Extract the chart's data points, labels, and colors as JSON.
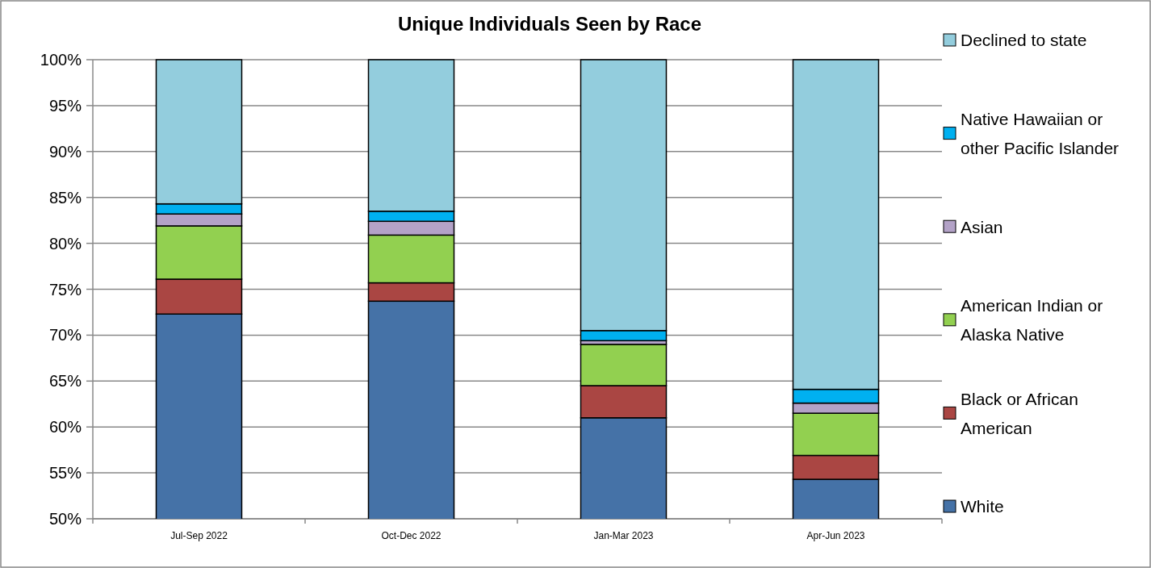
{
  "chart_data": {
    "type": "bar",
    "title": "Unique Individuals Seen by Race",
    "stacked": true,
    "categories": [
      "Jul-Sep 2022",
      "Oct-Dec 2022",
      "Jan-Mar 2023",
      "Apr-Jun 2023"
    ],
    "series": [
      {
        "name": "White",
        "color": "#4572a7",
        "values": [
          72.3,
          73.7,
          61.0,
          54.3
        ]
      },
      {
        "name": "Black or African American",
        "color": "#aa4643",
        "base": [
          72.3,
          73.7,
          61.0,
          54.3
        ],
        "values": [
          3.8,
          2.0,
          3.5,
          2.6
        ]
      },
      {
        "name": "American Indian or Alaska Native",
        "color": "#92d050",
        "base": [
          76.1,
          75.7,
          64.5,
          56.9
        ],
        "values": [
          5.8,
          5.2,
          4.5,
          4.6
        ]
      },
      {
        "name": "Asian",
        "color": "#b3a2c7",
        "base": [
          81.9,
          80.9,
          69.0,
          61.5
        ],
        "values": [
          1.3,
          1.5,
          0.4,
          1.1
        ]
      },
      {
        "name": "Native Hawaiian or other Pacific Islander",
        "color": "#00b0f0",
        "base": [
          83.2,
          82.4,
          69.4,
          62.6
        ],
        "values": [
          1.1,
          1.1,
          1.1,
          1.5
        ]
      },
      {
        "name": "Declined to state",
        "color": "#93cddd",
        "base": [
          84.3,
          83.5,
          70.5,
          64.1
        ],
        "values": [
          15.7,
          16.5,
          29.5,
          35.9
        ]
      }
    ],
    "ylim": [
      50,
      100
    ],
    "yticks": [
      {
        "value": 50,
        "label": "50%"
      },
      {
        "value": 55,
        "label": "55%"
      },
      {
        "value": 60,
        "label": "60%"
      },
      {
        "value": 65,
        "label": "65%"
      },
      {
        "value": 70,
        "label": "70%"
      },
      {
        "value": 75,
        "label": "75%"
      },
      {
        "value": 80,
        "label": "80%"
      },
      {
        "value": 85,
        "label": "85%"
      },
      {
        "value": 90,
        "label": "90%"
      },
      {
        "value": 95,
        "label": "95%"
      },
      {
        "value": 100,
        "label": "100%"
      }
    ],
    "grid": "y",
    "legend": "right"
  }
}
